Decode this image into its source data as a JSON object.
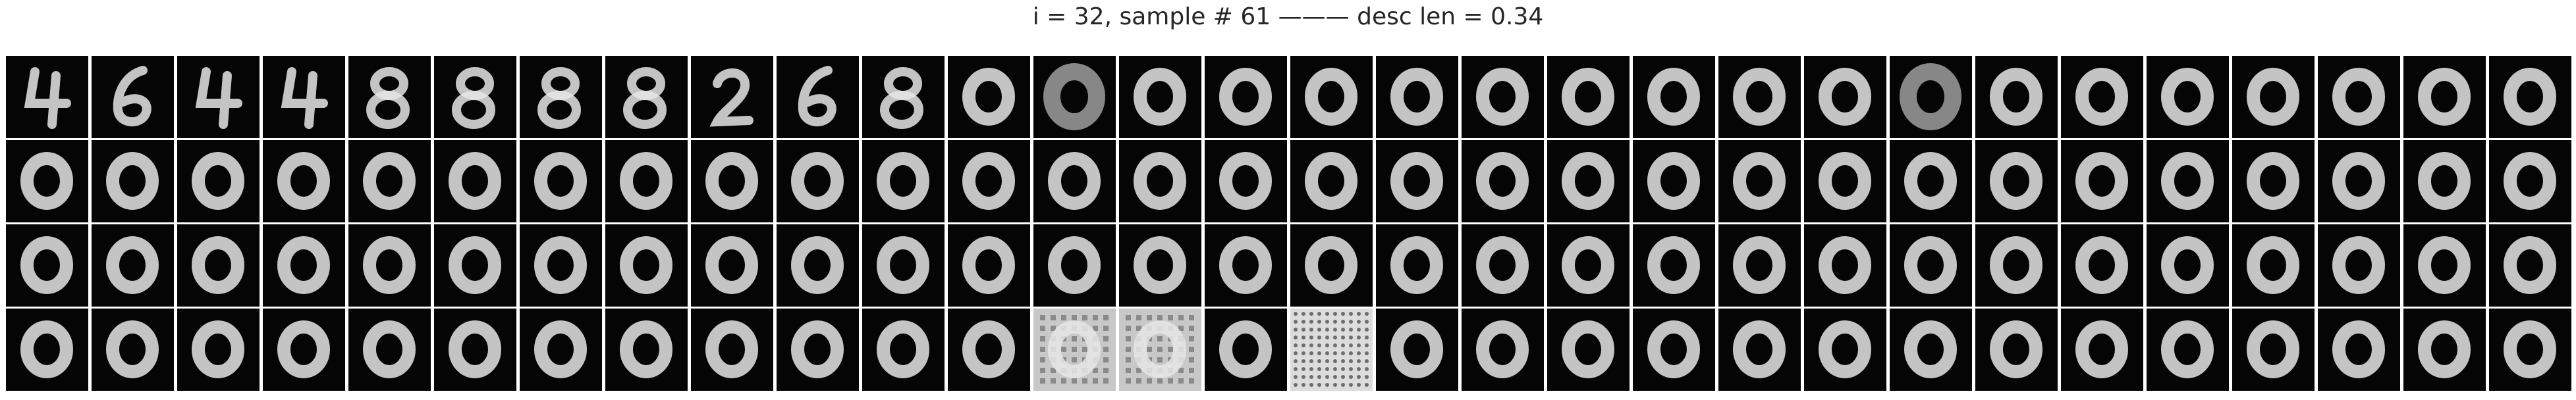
{
  "figure": {
    "title": "i = 32, sample # 61 ——— desc len = 0.34",
    "rows": 4,
    "columns": 30,
    "colors": {
      "background": "#ffffff",
      "tile": "#050505",
      "digit": "#e6e6e6",
      "title_text": "#262626"
    },
    "panels": [
      [
        "digit-4",
        "digit-6",
        "digit-4",
        "digit-4",
        "digit-8",
        "digit-8",
        "digit-8",
        "digit-8",
        "digit-2",
        "digit-6",
        "digit-8",
        "digit-0",
        "digit-blurred",
        "digit-0",
        "digit-0",
        "digit-0",
        "digit-0",
        "digit-0",
        "digit-0",
        "digit-0",
        "digit-0",
        "digit-0",
        "digit-blurred",
        "digit-0",
        "digit-0",
        "digit-0",
        "digit-0",
        "digit-0",
        "digit-0",
        "digit-0"
      ],
      [
        "digit-0",
        "digit-0",
        "digit-0",
        "digit-0",
        "digit-0",
        "digit-0",
        "digit-0",
        "digit-0",
        "digit-0",
        "digit-0",
        "digit-0",
        "digit-0",
        "digit-0",
        "digit-0",
        "digit-0",
        "digit-0",
        "digit-0",
        "digit-0",
        "digit-0",
        "digit-0",
        "digit-0",
        "digit-0",
        "digit-0",
        "digit-0",
        "digit-0",
        "digit-0",
        "digit-0",
        "digit-0",
        "digit-0",
        "digit-0"
      ],
      [
        "digit-0",
        "digit-0",
        "digit-0",
        "digit-0",
        "digit-0",
        "digit-0",
        "digit-0",
        "digit-0",
        "digit-0",
        "digit-0",
        "digit-0",
        "digit-0",
        "digit-0",
        "digit-0",
        "digit-0",
        "digit-0",
        "digit-0",
        "digit-0",
        "digit-0",
        "digit-0",
        "digit-0",
        "digit-0",
        "digit-0",
        "digit-0",
        "digit-0",
        "digit-0",
        "digit-0",
        "digit-0",
        "digit-0",
        "digit-0"
      ],
      [
        "digit-0",
        "digit-0",
        "digit-0",
        "digit-0",
        "digit-0",
        "digit-0",
        "digit-0",
        "digit-0",
        "digit-0",
        "digit-0",
        "digit-0",
        "digit-0",
        "noise-grid",
        "noise-grid",
        "digit-0",
        "noise-dots",
        "digit-0",
        "digit-0",
        "digit-0",
        "digit-0",
        "digit-0",
        "digit-0",
        "digit-0",
        "digit-0",
        "digit-0",
        "digit-0",
        "digit-0",
        "digit-0",
        "digit-0",
        "digit-0"
      ]
    ]
  }
}
